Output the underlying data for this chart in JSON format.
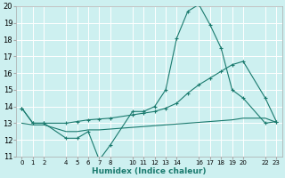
{
  "xlabel": "Humidex (Indice chaleur)",
  "bg_color": "#cdf0f0",
  "grid_color": "#ffffff",
  "line_color": "#1a7a6e",
  "ylim": [
    11,
    20
  ],
  "xlim": [
    -0.5,
    23.5
  ],
  "yticks": [
    11,
    12,
    13,
    14,
    15,
    16,
    17,
    18,
    19,
    20
  ],
  "xticks": [
    0,
    1,
    2,
    4,
    5,
    6,
    7,
    8,
    10,
    11,
    12,
    13,
    14,
    16,
    17,
    18,
    19,
    20,
    22,
    23
  ],
  "series1_x": [
    0,
    1,
    2,
    4,
    5,
    6,
    7,
    8,
    10,
    11,
    12,
    13,
    14,
    15,
    16,
    17,
    18,
    19,
    20,
    22,
    23
  ],
  "series1_y": [
    13.9,
    13.0,
    13.0,
    12.1,
    12.1,
    12.5,
    10.8,
    11.7,
    13.7,
    13.7,
    14.0,
    15.0,
    18.1,
    19.7,
    20.1,
    18.9,
    17.5,
    15.0,
    14.5,
    13.0,
    13.1
  ],
  "series2_x": [
    0,
    1,
    2,
    4,
    5,
    6,
    7,
    8,
    10,
    11,
    12,
    13,
    14,
    15,
    16,
    17,
    18,
    19,
    20,
    22,
    23
  ],
  "series2_y": [
    13.9,
    13.0,
    13.0,
    13.0,
    13.1,
    13.2,
    13.25,
    13.3,
    13.5,
    13.6,
    13.7,
    13.9,
    14.2,
    14.8,
    15.3,
    15.7,
    16.1,
    16.5,
    16.7,
    14.5,
    13.1
  ],
  "series3_x": [
    0,
    1,
    2,
    4,
    5,
    6,
    7,
    8,
    10,
    11,
    12,
    13,
    14,
    15,
    16,
    17,
    18,
    19,
    20,
    22,
    23
  ],
  "series3_y": [
    13.0,
    12.9,
    12.9,
    12.5,
    12.5,
    12.6,
    12.6,
    12.65,
    12.75,
    12.8,
    12.85,
    12.9,
    12.95,
    13.0,
    13.05,
    13.1,
    13.15,
    13.2,
    13.3,
    13.3,
    13.05
  ]
}
